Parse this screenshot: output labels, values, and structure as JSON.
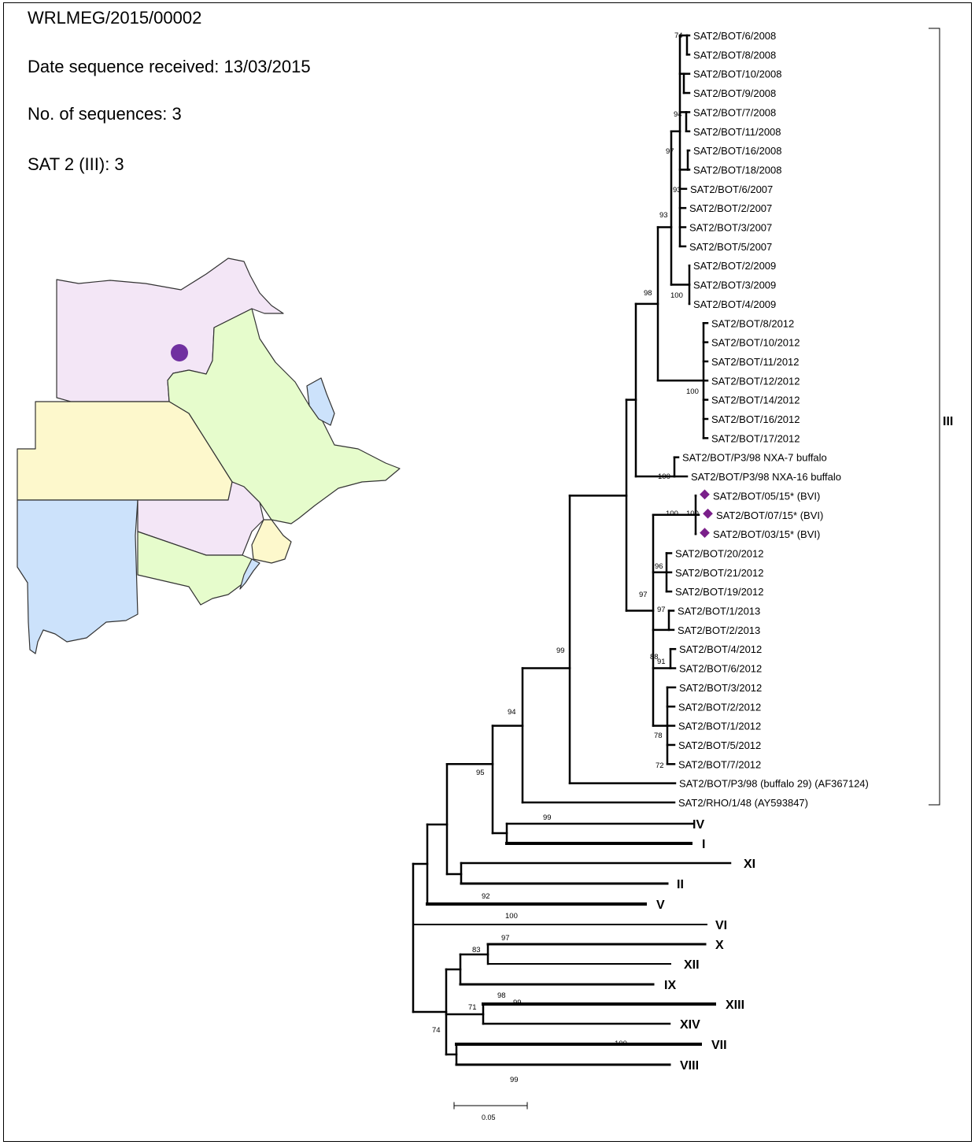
{
  "header": {
    "report_id": "WRLMEG/2015/00002",
    "date_received": "Date sequence received: 13/03/2015",
    "num_sequences": "No. of sequences: 3",
    "topotype_count": "SAT 2 (III): 3"
  },
  "map": {
    "title": "",
    "outbreak_marker_color": "#7030a0",
    "region_colors": [
      "#f3e6f6",
      "#e6fccc",
      "#fdf8cc",
      "#cce2fb"
    ]
  },
  "tree": {
    "line_color": "#000000",
    "highlight_color": "#7a1f8a",
    "leaves": [
      "SAT2/BOT/6/2008",
      "SAT2/BOT/8/2008",
      "SAT2/BOT/10/2008",
      "SAT2/BOT/9/2008",
      "SAT2/BOT/7/2008",
      "SAT2/BOT/11/2008",
      "SAT2/BOT/16/2008",
      "SAT2/BOT/18/2008",
      "SAT2/BOT/6/2007",
      "SAT2/BOT/2/2007",
      "SAT2/BOT/3/2007",
      "SAT2/BOT/5/2007",
      "SAT2/BOT/2/2009",
      "SAT2/BOT/3/2009",
      "SAT2/BOT/4/2009",
      "SAT2/BOT/8/2012",
      "SAT2/BOT/10/2012",
      "SAT2/BOT/11/2012",
      "SAT2/BOT/12/2012",
      "SAT2/BOT/14/2012",
      "SAT2/BOT/16/2012",
      "SAT2/BOT/17/2012",
      "SAT2/BOT/P3/98 NXA-7 buffalo",
      "SAT2/BOT/P3/98 NXA-16 buffalo",
      "SAT2/BOT/05/15* (BVI)",
      "SAT2/BOT/07/15* (BVI)",
      "SAT2/BOT/03/15* (BVI)",
      "SAT2/BOT/20/2012",
      "SAT2/BOT/21/2012",
      "SAT2/BOT/19/2012",
      "SAT2/BOT/1/2013",
      "SAT2/BOT/2/2013",
      "SAT2/BOT/4/2012",
      "SAT2/BOT/6/2012",
      "SAT2/BOT/3/2012",
      "SAT2/BOT/2/2012",
      "SAT2/BOT/1/2012",
      "SAT2/BOT/5/2012",
      "SAT2/BOT/7/2012",
      "SAT2/BOT/P3/98 (buffalo 29) (AF367124)",
      "SAT2/RHO/1/48 (AY593847)"
    ],
    "highlighted_leaves": [
      "SAT2/BOT/05/15* (BVI)",
      "SAT2/BOT/07/15* (BVI)",
      "SAT2/BOT/03/15* (BVI)"
    ],
    "topotypes": [
      "IV",
      "I",
      "XI",
      "II",
      "V",
      "VI",
      "X",
      "XII",
      "IX",
      "XIII",
      "XIV",
      "VII",
      "VIII"
    ],
    "bracket_label": "III",
    "bootstrap_values": [
      "74",
      "94",
      "97",
      "93",
      "93",
      "98",
      "100",
      "100",
      "100",
      "100",
      "100",
      "96",
      "97",
      "97",
      "88",
      "91",
      "78",
      "72",
      "99",
      "94",
      "95",
      "99",
      "92",
      "100",
      "97",
      "83",
      "98",
      "99",
      "71",
      "74",
      "100",
      "99"
    ],
    "scale_bar_label": "0.05"
  }
}
